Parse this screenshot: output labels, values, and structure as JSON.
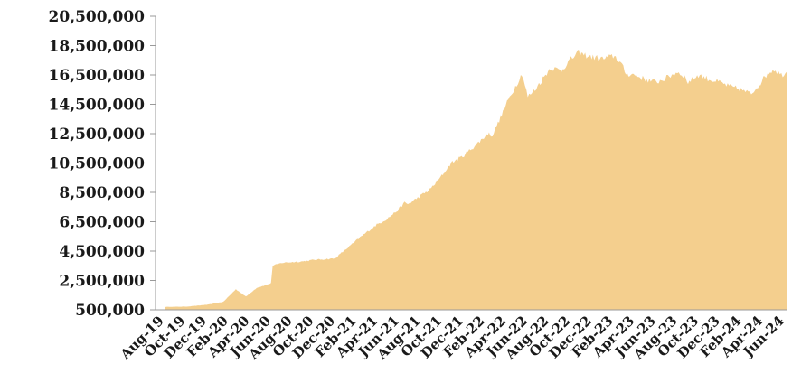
{
  "chart_data": {
    "type": "area",
    "title": "",
    "xlabel": "",
    "ylabel": "",
    "ylim": [
      500000,
      20500000
    ],
    "y_ticks": [
      "20,500,000",
      "18,500,000",
      "16,500,000",
      "14,500,000",
      "12,500,000",
      "10,500,000",
      "8,500,000",
      "6,500,000",
      "4,500,000",
      "2,500,000",
      "500,000"
    ],
    "x_ticks": [
      "Aug-19",
      "Oct-19",
      "Dec-19",
      "Feb-20",
      "Apr-20",
      "Jun-20",
      "Aug-20",
      "Oct-20",
      "Dec-20",
      "Feb-21",
      "Apr-21",
      "Jun-21",
      "Aug-21",
      "Oct-21",
      "Dec-21",
      "Feb-22",
      "Apr-22",
      "Jun-22",
      "Aug-22",
      "Oct-22",
      "Dec-22",
      "Feb-23",
      "Apr-23",
      "Jun-23",
      "Aug-23",
      "Oct-23",
      "Dec-23",
      "Feb-24",
      "Apr-24",
      "Jun-24"
    ],
    "fill_color": "#f4cf8e",
    "grid": false,
    "legend": "none",
    "series": [
      {
        "x": [
          "2019-08-01",
          "2019-10-01",
          "2019-12-01",
          "2020-01-15",
          "2020-02-20",
          "2020-03-20",
          "2020-04-20",
          "2020-05-31",
          "2020-06-05",
          "2020-07-01",
          "2020-08-01",
          "2020-09-01",
          "2020-10-01",
          "2020-11-01",
          "2020-12-01",
          "2021-01-01",
          "2021-02-15",
          "2021-04-01",
          "2021-05-01",
          "2021-06-01",
          "2021-06-20",
          "2021-07-01",
          "2021-08-01",
          "2021-09-01",
          "2021-10-01",
          "2021-11-01",
          "2021-12-01",
          "2022-01-15",
          "2022-02-15",
          "2022-03-01",
          "2022-04-15",
          "2022-05-25",
          "2022-06-10",
          "2022-07-01",
          "2022-08-15",
          "2022-09-15",
          "2022-10-01",
          "2022-11-01",
          "2022-11-15",
          "2022-12-15",
          "2023-01-15",
          "2023-02-15",
          "2023-03-05",
          "2023-03-20",
          "2023-04-15",
          "2023-05-15",
          "2023-06-15",
          "2023-07-15",
          "2023-08-15",
          "2023-09-01",
          "2023-09-15",
          "2023-10-15",
          "2023-11-15",
          "2023-12-15",
          "2024-01-15",
          "2024-02-15",
          "2024-03-15",
          "2024-04-15",
          "2024-05-01",
          "2024-05-20",
          "2024-06-10",
          "2024-06-25"
        ],
        "values": [
          700000,
          720000,
          850000,
          1050000,
          1900000,
          1400000,
          2000000,
          2300000,
          3500000,
          3700000,
          3750000,
          3800000,
          3900000,
          3950000,
          4000000,
          4600000,
          5500000,
          6300000,
          6700000,
          7300000,
          7800000,
          7700000,
          8200000,
          8700000,
          9500000,
          10500000,
          10900000,
          11800000,
          12500000,
          12400000,
          14800000,
          16600000,
          15000000,
          15500000,
          17000000,
          16800000,
          17300000,
          18000000,
          17900000,
          17700000,
          17600000,
          17800000,
          17300000,
          16600000,
          16500000,
          16200000,
          16000000,
          16300000,
          16700000,
          16500000,
          16000000,
          16500000,
          16200000,
          16000000,
          15700000,
          15500000,
          15200000,
          16100000,
          16600000,
          16900000,
          16500000,
          16700000
        ]
      }
    ]
  }
}
